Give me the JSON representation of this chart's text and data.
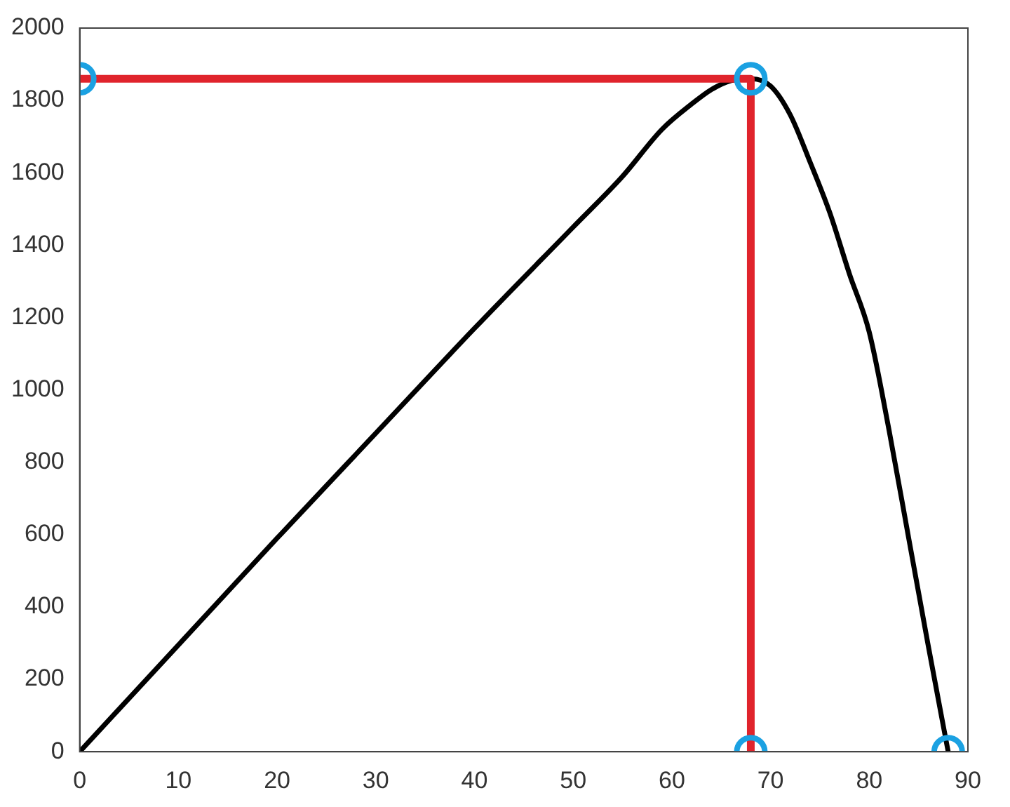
{
  "chart_data": {
    "type": "line",
    "xlim": [
      0,
      90
    ],
    "ylim": [
      0,
      2000
    ],
    "xticks": [
      0,
      10,
      20,
      30,
      40,
      50,
      60,
      70,
      80,
      90
    ],
    "yticks": [
      0,
      200,
      400,
      600,
      800,
      1000,
      1200,
      1400,
      1600,
      1800,
      2000
    ],
    "grid": false,
    "legend": false,
    "series": [
      {
        "color": "#000000",
        "x": [
          0,
          10,
          20,
          30,
          40,
          50,
          55,
          59,
          62,
          64,
          66,
          68,
          70,
          72,
          74,
          76,
          78,
          80,
          82,
          84,
          86,
          88
        ],
        "values": [
          0,
          295,
          590,
          880,
          1170,
          1450,
          1590,
          1720,
          1790,
          1830,
          1855,
          1860,
          1840,
          1760,
          1630,
          1490,
          1320,
          1160,
          890,
          590,
          290,
          0
        ]
      },
      {
        "color": "#e0242c",
        "x": [
          0,
          68,
          68
        ],
        "values": [
          1860,
          1860,
          0
        ],
        "line_style": "solid",
        "marker": "none"
      },
      {
        "type": "scatter",
        "color": "#1ba1e2",
        "x": [
          0,
          68,
          68,
          88
        ],
        "values": [
          1860,
          1860,
          0,
          0
        ],
        "marker": "circle"
      }
    ]
  }
}
